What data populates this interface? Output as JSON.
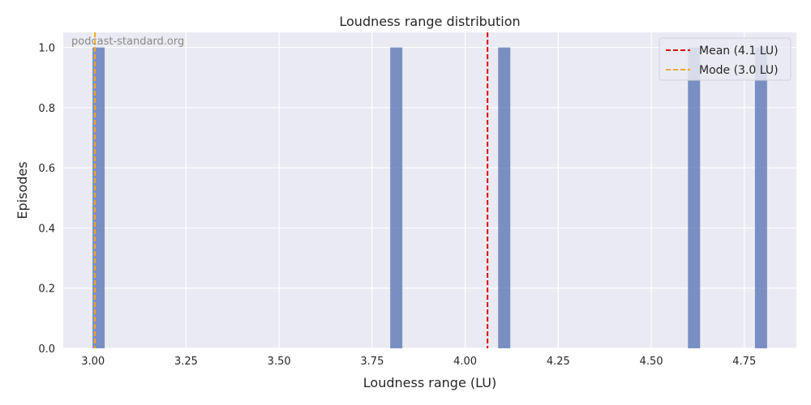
{
  "chart_data": {
    "type": "bar",
    "title": "Loudness range distribution",
    "xlabel": "Loudness range (LU)",
    "ylabel": "Episodes",
    "xlim": [
      2.92,
      4.89
    ],
    "ylim": [
      0,
      1.05
    ],
    "xticks": [
      "3.00",
      "3.25",
      "3.50",
      "3.75",
      "4.00",
      "4.25",
      "4.50",
      "4.75"
    ],
    "yticks": [
      "0.0",
      "0.2",
      "0.4",
      "0.6",
      "0.8",
      "1.0"
    ],
    "bin_width": 0.036,
    "bars": [
      {
        "x": 3.0,
        "count": 1
      },
      {
        "x": 3.8,
        "count": 1
      },
      {
        "x": 4.09,
        "count": 1
      },
      {
        "x": 4.6,
        "count": 1
      },
      {
        "x": 4.78,
        "count": 1
      }
    ],
    "reference_lines": [
      {
        "name": "Mean (4.1 LU)",
        "x": 4.06,
        "color": "#e00000",
        "style": "dashed"
      },
      {
        "name": "Mode (3.0 LU)",
        "x": 3.005,
        "color": "#f5a623",
        "style": "dashed"
      }
    ],
    "bar_color": "#5874b4",
    "background": "#eaeaf2",
    "grid": true,
    "legend_position": "top-right",
    "watermark": "podcast-standard.org"
  }
}
